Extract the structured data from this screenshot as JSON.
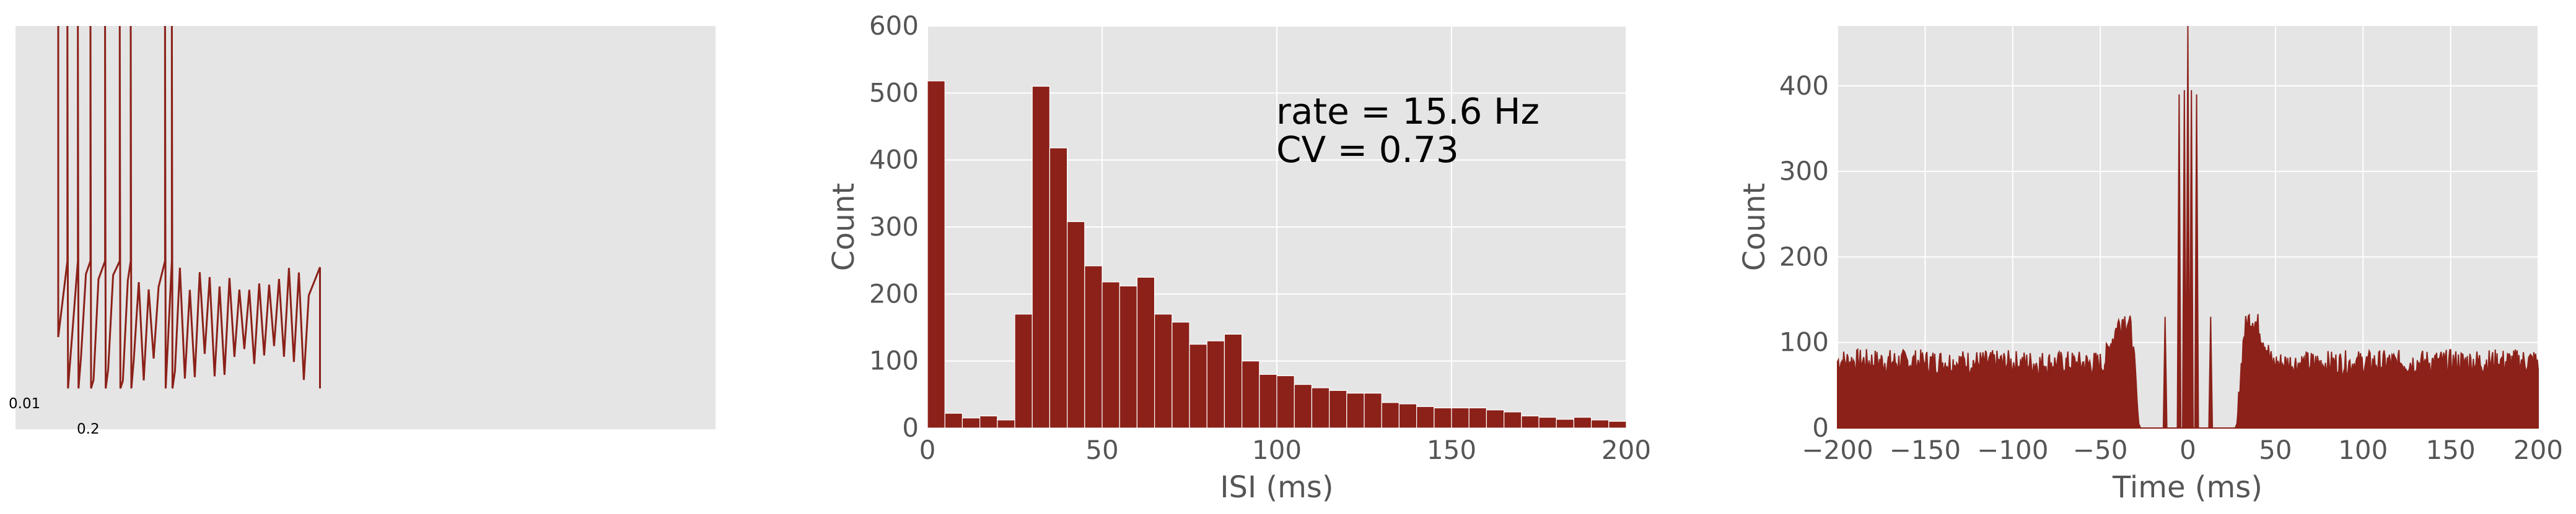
{
  "colors": {
    "bar": "#8b2119",
    "panel": "#e5e5e5",
    "grid": "#ffffff",
    "tick_text": "#555555"
  },
  "chart_data": [
    {
      "type": "line",
      "title": "",
      "xlabel": "",
      "ylabel": "",
      "description_scale": {
        "voltage_label": "0.01",
        "time_label": "0.2"
      },
      "spike_times_rel": [
        0.0,
        0.075,
        0.035,
        0.123,
        0.179,
        0.235,
        0.277,
        0.408,
        0.434
      ],
      "trace_end_frac": 0.435
    },
    {
      "type": "bar",
      "title": "",
      "xlabel": "ISI (ms)",
      "ylabel": "Count",
      "xlim": [
        0,
        200
      ],
      "ylim": [
        0,
        600
      ],
      "xticks": [
        "0",
        "50",
        "100",
        "150",
        "200"
      ],
      "yticks": [
        "0",
        "100",
        "200",
        "300",
        "400",
        "500",
        "600"
      ],
      "bin_width": 5,
      "x": [
        0,
        5,
        10,
        15,
        20,
        25,
        30,
        35,
        40,
        45,
        50,
        55,
        60,
        65,
        70,
        75,
        80,
        85,
        90,
        95,
        100,
        105,
        110,
        115,
        120,
        125,
        130,
        135,
        140,
        145,
        150,
        155,
        160,
        165,
        170,
        175,
        180,
        185,
        190,
        195
      ],
      "values": [
        518,
        22,
        15,
        18,
        12,
        170,
        510,
        418,
        308,
        242,
        218,
        212,
        225,
        170,
        158,
        125,
        130,
        140,
        100,
        80,
        78,
        65,
        60,
        56,
        52,
        52,
        38,
        36,
        32,
        30,
        30,
        30,
        27,
        24,
        18,
        16,
        13,
        16,
        12,
        10
      ],
      "annotations": [
        "rate = 15.6 Hz",
        "CV = 0.73"
      ]
    },
    {
      "type": "area",
      "title": "",
      "xlabel": "Time (ms)",
      "ylabel": "Count",
      "xlim": [
        -200,
        200
      ],
      "ylim": [
        0,
        470
      ],
      "xticks": [
        "−200",
        "−150",
        "−100",
        "−50",
        "0",
        "50",
        "100",
        "150",
        "200"
      ],
      "yticks": [
        "0",
        "100",
        "200",
        "300",
        "400"
      ],
      "baseline_level": 78,
      "x": [
        -200,
        -48,
        -44,
        -40,
        -37,
        -34,
        -32,
        -30,
        -29,
        -28,
        -27,
        -26,
        -20,
        -14,
        -13,
        -12,
        -10,
        -6,
        -5,
        -4,
        -3,
        -2,
        -1,
        0,
        1,
        2,
        3,
        4,
        5,
        6,
        10,
        12,
        13,
        14,
        20,
        26,
        27,
        28,
        29,
        30,
        32,
        34,
        37,
        40,
        44,
        48,
        200
      ],
      "values": [
        78,
        75,
        100,
        120,
        128,
        125,
        110,
        60,
        30,
        5,
        0,
        0,
        0,
        0,
        130,
        0,
        0,
        0,
        390,
        0,
        0,
        395,
        0,
        470,
        0,
        395,
        0,
        0,
        390,
        0,
        0,
        0,
        130,
        0,
        0,
        0,
        0,
        5,
        30,
        60,
        110,
        125,
        128,
        120,
        100,
        75,
        78
      ]
    }
  ]
}
